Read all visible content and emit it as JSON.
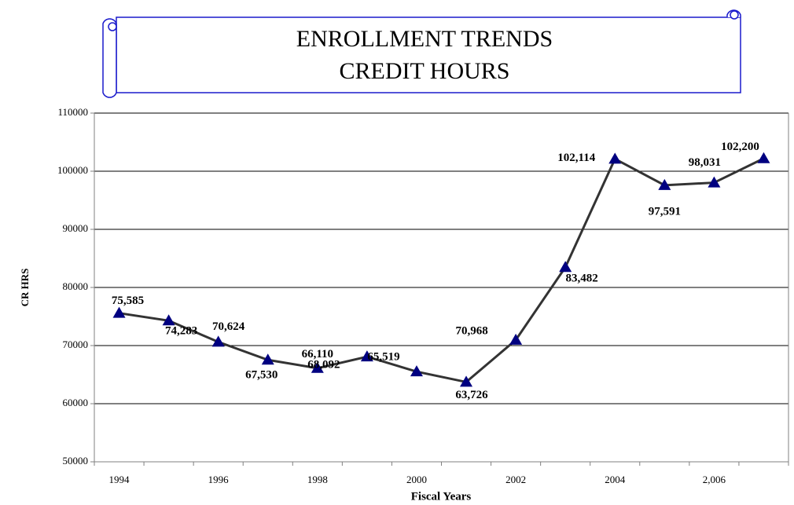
{
  "chart_data": {
    "type": "line",
    "title": "ENROLLMENT TRENDS",
    "subtitle": "CREDIT HOURS",
    "x_label": "Fiscal Years",
    "y_label": "CR HRS",
    "categories": [
      "1994",
      null,
      "1996",
      null,
      "1998",
      null,
      "2000",
      null,
      "2002",
      null,
      "2004",
      null,
      "2,006",
      null
    ],
    "series": [
      {
        "color": "#333333",
        "marker_color": "#000080",
        "values": [
          75585,
          74283,
          70624,
          67530,
          66110,
          68092,
          65519,
          63726,
          70968,
          83482,
          102114,
          97591,
          98031,
          102200
        ],
        "value_labels": [
          "75,585",
          "74,283",
          "70,624",
          "67,530",
          "66,110",
          "68,092",
          "65,519",
          "63,726",
          "70,968",
          "83,482",
          "102,114",
          "97,591",
          "98,031",
          "102,200"
        ]
      }
    ],
    "ylim": [
      50000,
      110000
    ],
    "yticks": [
      50000,
      60000,
      70000,
      80000,
      90000,
      100000,
      110000
    ],
    "grid": true
  }
}
